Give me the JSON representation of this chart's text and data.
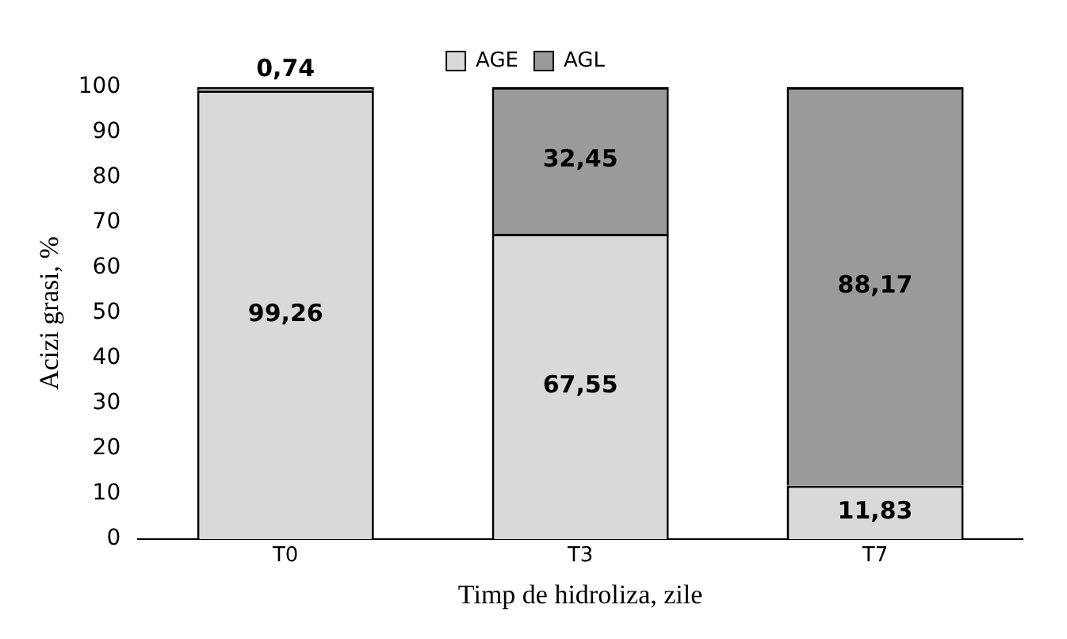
{
  "chart_data": {
    "type": "bar",
    "stacked": true,
    "xlabel": "Timp de hidroliza, zile",
    "ylabel": "Acizi grasi, %",
    "categories": [
      "T0",
      "T3",
      "T7"
    ],
    "series": [
      {
        "name": "AGE",
        "color": "#d9d9d9",
        "values": [
          99.26,
          67.55,
          11.83
        ],
        "value_labels": [
          "99,26",
          "67,55",
          "11,83"
        ]
      },
      {
        "name": "AGL",
        "color": "#9a9a9a",
        "values": [
          0.74,
          32.45,
          88.17
        ],
        "value_labels": [
          "0,74",
          "32,45",
          "88,17"
        ]
      }
    ],
    "ylim": [
      0,
      100
    ],
    "yticks": [
      0,
      10,
      20,
      30,
      40,
      50,
      60,
      70,
      80,
      90,
      100
    ],
    "grid": false,
    "legend": "top"
  }
}
